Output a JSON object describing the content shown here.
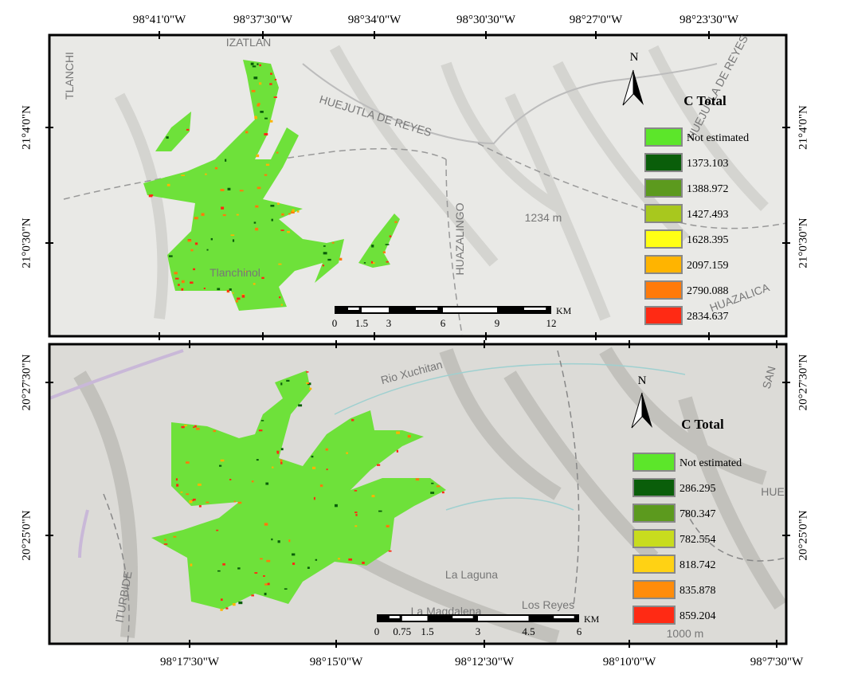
{
  "panels": [
    {
      "top_axis_labels": [
        "98°41'0\"W",
        "98°37'30\"W",
        "98°34'0\"W",
        "98°30'30\"W",
        "98°27'0\"W",
        "98°23'30\"W"
      ],
      "left_axis_labels": [
        "21°4'0\"N",
        "21°0'30\"N"
      ],
      "right_axis_labels": [
        "21°4'0\"N",
        "21°0'30\"N"
      ],
      "place_labels": [
        "TLANCHI",
        "IZATLAN",
        "HUEJUTLA DE REYES",
        "HUAZALINGO",
        "1234 m",
        "Tlanchinol",
        "HUEJUTLA DE REYES",
        "HUAZALICA"
      ],
      "north_label": "N",
      "legend": {
        "title": "C Total",
        "items": [
          {
            "label": "Not estimated",
            "color": "#5ce62a"
          },
          {
            "label": 1373.103,
            "color": "#0a5e0a"
          },
          {
            "label": 1388.972,
            "color": "#5c9a1e"
          },
          {
            "label": 1427.493,
            "color": "#a8c81e"
          },
          {
            "label": 1628.395,
            "color": "#ffff14"
          },
          {
            "label": 2097.159,
            "color": "#ffb400"
          },
          {
            "label": 2790.088,
            "color": "#ff7a0a"
          },
          {
            "label": 2834.637,
            "color": "#ff2a14"
          }
        ]
      },
      "scale_bar": {
        "ticks": [
          0,
          1.5,
          3,
          6,
          9,
          12
        ],
        "unit": "KM"
      }
    },
    {
      "bottom_axis_labels": [
        "98°17'30\"W",
        "98°15'0\"W",
        "98°12'30\"W",
        "98°10'0\"W",
        "98°7'30\"W"
      ],
      "left_axis_labels": [
        "20°27'30\"N",
        "20°25'0\"N"
      ],
      "right_axis_labels": [
        "20°27'30\"N",
        "20°25'0\"N"
      ],
      "place_labels": [
        "Rio Xuchitan",
        "La Laguna",
        "Los Reyes",
        "La Magdalena",
        "ITURBIDE",
        "SAN",
        "HUE",
        "1000 m"
      ],
      "north_label": "N",
      "legend": {
        "title": "C Total",
        "items": [
          {
            "label": "Not estimated",
            "color": "#5ce62a"
          },
          {
            "label": 286.295,
            "color": "#0a5e0a"
          },
          {
            "label": 780.347,
            "color": "#5c9a1e"
          },
          {
            "label": 782.554,
            "color": "#c8dc1e"
          },
          {
            "label": 818.742,
            "color": "#ffd214"
          },
          {
            "label": 835.878,
            "color": "#ff8c0a"
          },
          {
            "label": 859.204,
            "color": "#ff2a14"
          }
        ]
      },
      "scale_bar": {
        "ticks": [
          0,
          0.75,
          1.5,
          3,
          4.5,
          6
        ],
        "unit": "KM"
      }
    }
  ]
}
